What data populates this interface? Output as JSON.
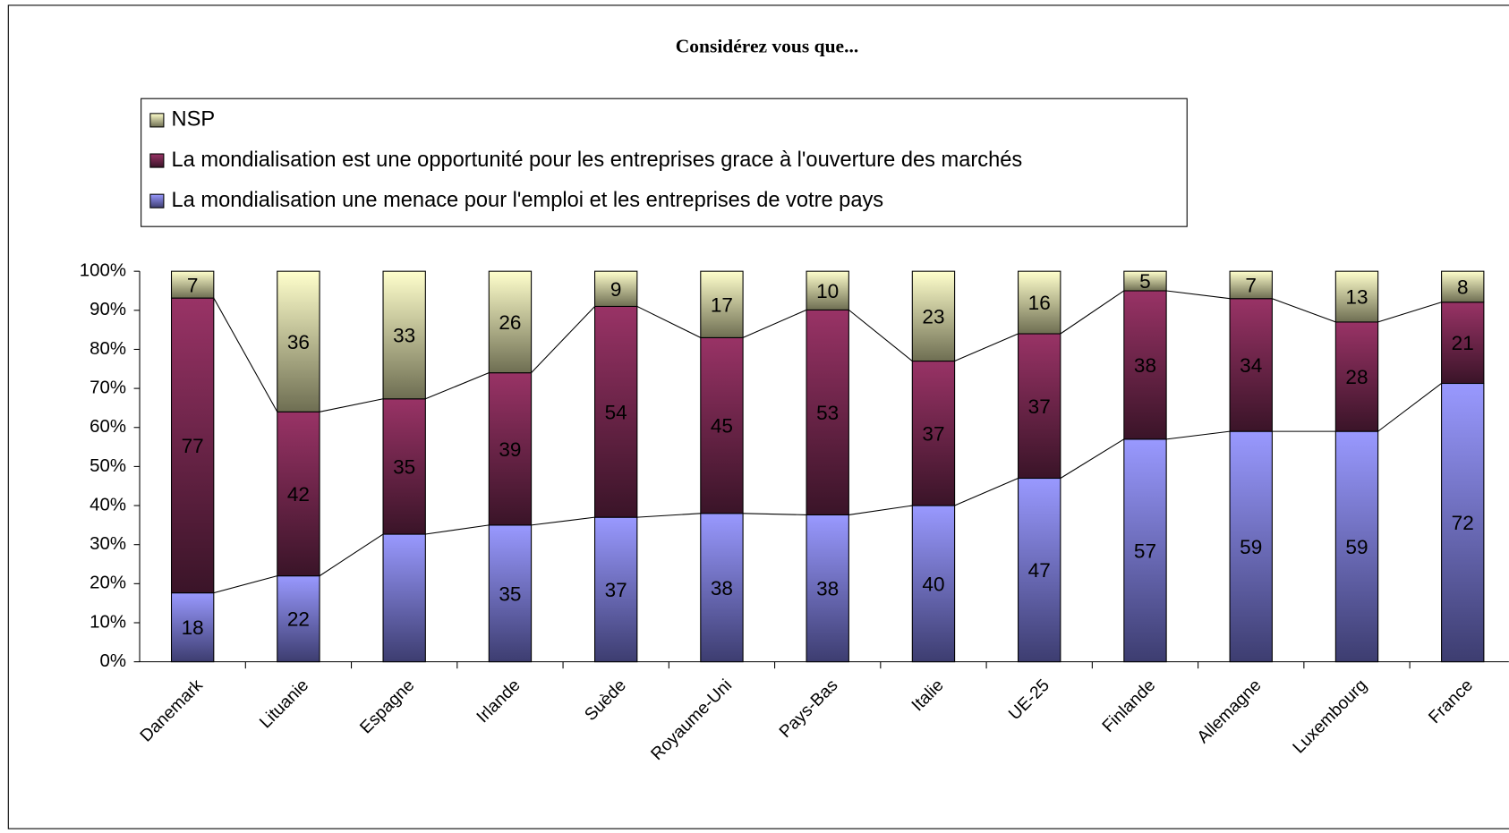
{
  "chart_data": {
    "type": "bar",
    "stacking": "percent",
    "title": "Considérez vous que...",
    "categories": [
      "Danemark",
      "Lituanie",
      "Espagne",
      "Irlande",
      "Suède",
      "Royaume-Uni",
      "Pays-Bas",
      "Italie",
      "UE-25",
      "Finlande",
      "Allemagne",
      "Luxembourg",
      "France"
    ],
    "series": [
      {
        "name": "La mondialisation une menace pour l'emploi et les entreprises de votre pays",
        "color": [
          "#9999ff",
          "#3d3d70"
        ],
        "values": [
          18,
          22,
          33,
          35,
          37,
          38,
          38,
          40,
          47,
          57,
          59,
          59,
          72
        ],
        "value_labels": [
          18,
          22,
          null,
          35,
          37,
          38,
          38,
          40,
          47,
          57,
          59,
          59,
          72
        ]
      },
      {
        "name": "La mondialisation est une opportunité pour les entreprises grace à l'ouverture des marchés",
        "color": [
          "#993366",
          "#3a1428"
        ],
        "values": [
          77,
          42,
          35,
          39,
          54,
          45,
          53,
          37,
          37,
          38,
          34,
          28,
          21
        ]
      },
      {
        "name": "NSP",
        "color": [
          "#ffffcc",
          "#6e6e52"
        ],
        "values": [
          7,
          36,
          33,
          26,
          9,
          17,
          10,
          23,
          16,
          5,
          7,
          13,
          8
        ]
      }
    ],
    "ylim": [
      0,
      100
    ],
    "yticks": [
      {
        "value": 0,
        "label": "0%"
      },
      {
        "value": 10,
        "label": "10%"
      },
      {
        "value": 20,
        "label": "20%"
      },
      {
        "value": 30,
        "label": "30%"
      },
      {
        "value": 40,
        "label": "40%"
      },
      {
        "value": 50,
        "label": "50%"
      },
      {
        "value": 60,
        "label": "60%"
      },
      {
        "value": 70,
        "label": "70%"
      },
      {
        "value": 80,
        "label": "80%"
      },
      {
        "value": 90,
        "label": "90%"
      },
      {
        "value": 100,
        "label": "100%"
      }
    ],
    "series_lines": true
  }
}
